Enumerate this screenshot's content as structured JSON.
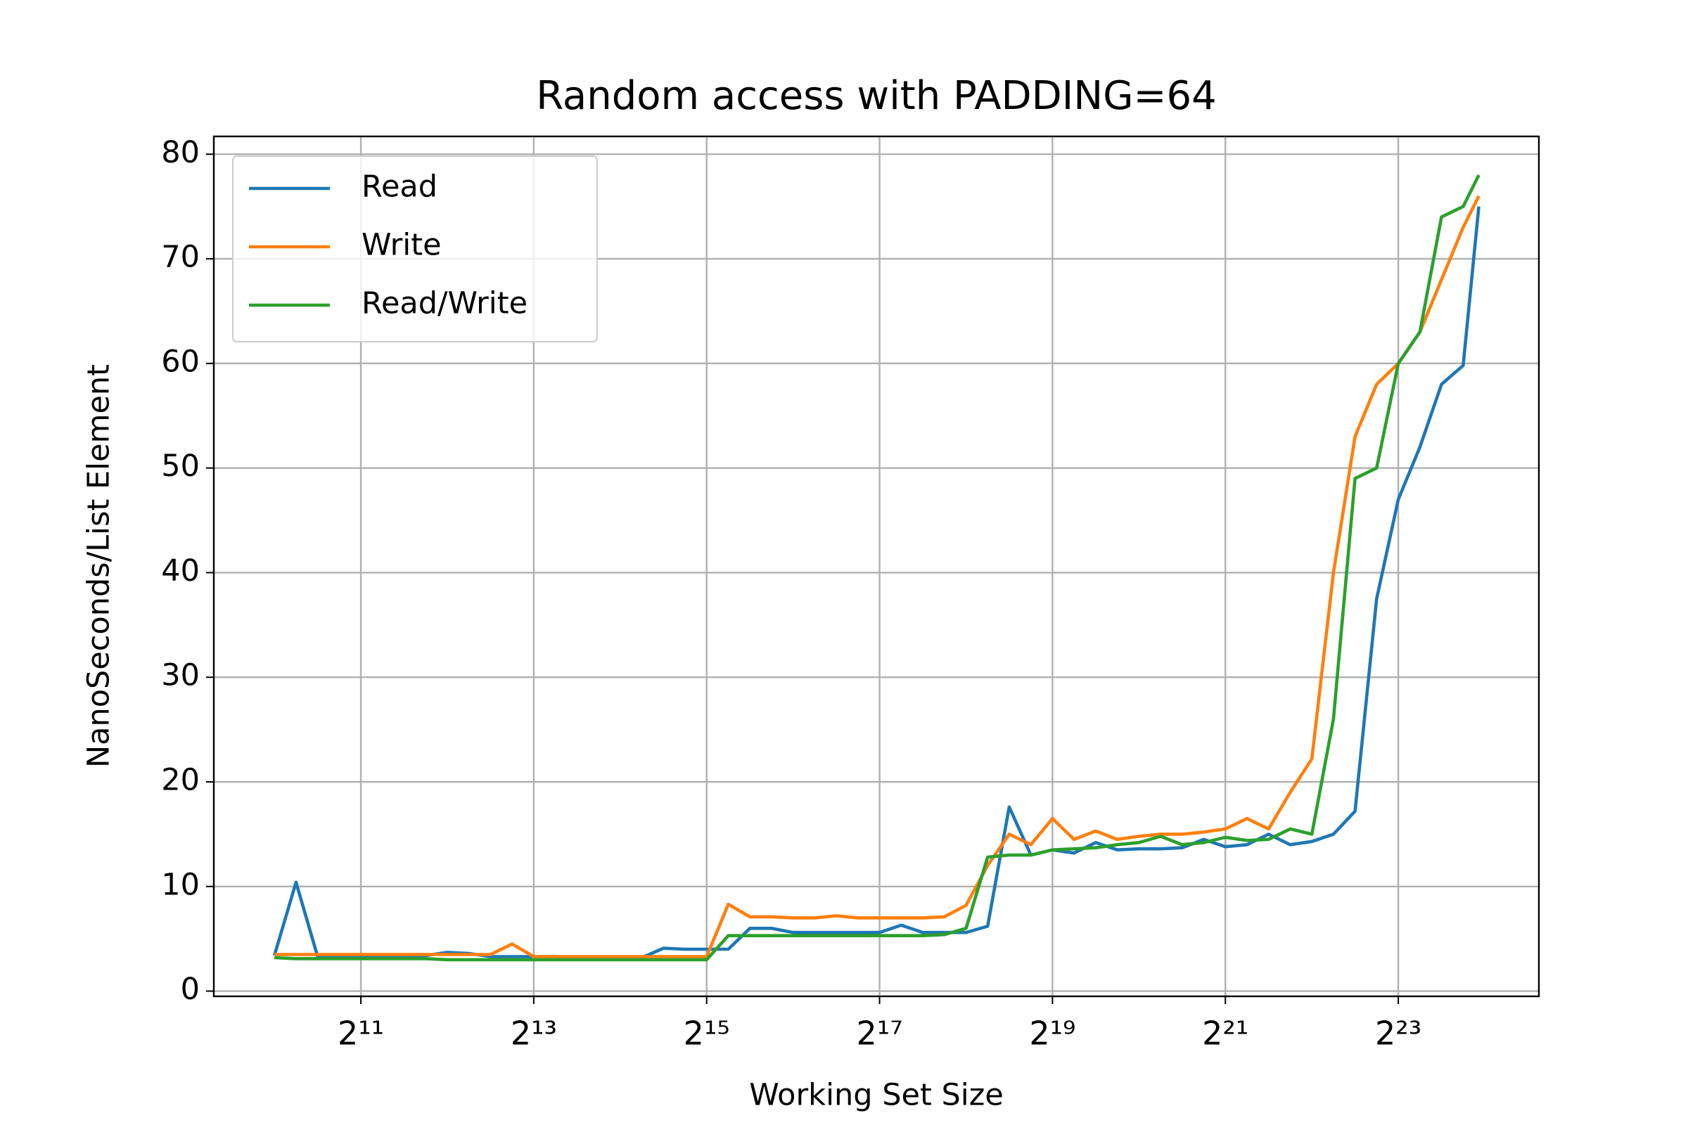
{
  "chart_data": {
    "type": "line",
    "title": "Random access with PADDING=64",
    "x_label": "Working Set Size",
    "y_label": "NanoSeconds/List Element",
    "x_scale": "log2",
    "grid": true,
    "legend": "upper left",
    "x": [
      1024,
      1218,
      1448,
      1722,
      2048,
      2435,
      2896,
      3444,
      4096,
      4871,
      5793,
      6889,
      8192,
      9742,
      11585,
      13777,
      16384,
      19484,
      23170,
      27554,
      32768,
      38968,
      46341,
      55109,
      65536,
      77936,
      92682,
      110218,
      131072,
      155872,
      185364,
      220436,
      262144,
      311744,
      370728,
      440872,
      524288,
      623487,
      741455,
      881744,
      1048576,
      1246974,
      1482910,
      1763488,
      2097152,
      2493948,
      2965821,
      3526975,
      4194304,
      4987896,
      5931642,
      7053950,
      8388608,
      9975792,
      11863283,
      14107901,
      16000000
    ],
    "series": [
      {
        "name": "Read",
        "color": "#1f77b4",
        "values": [
          3.4,
          10.4,
          3.3,
          3.3,
          3.3,
          3.3,
          3.3,
          3.4,
          3.7,
          3.6,
          3.3,
          3.3,
          3.3,
          3.3,
          3.2,
          3.2,
          3.2,
          3.2,
          4.1,
          4.0,
          4.0,
          4.0,
          6.0,
          6.0,
          5.6,
          5.6,
          5.6,
          5.6,
          5.6,
          6.3,
          5.6,
          5.6,
          5.6,
          6.2,
          17.6,
          13.0,
          13.5,
          13.2,
          14.2,
          13.5,
          13.6,
          13.6,
          13.7,
          14.5,
          13.8,
          14.0,
          15.0,
          14.0,
          14.3,
          15.0,
          17.2,
          37.5,
          47.0,
          52.0,
          58.0,
          59.8,
          75.0
        ]
      },
      {
        "name": "Write",
        "color": "#ff7f0e",
        "values": [
          3.5,
          3.5,
          3.5,
          3.5,
          3.5,
          3.5,
          3.5,
          3.5,
          3.5,
          3.5,
          3.5,
          4.5,
          3.3,
          3.3,
          3.3,
          3.3,
          3.3,
          3.3,
          3.3,
          3.3,
          3.3,
          8.3,
          7.1,
          7.1,
          7.0,
          7.0,
          7.2,
          7.0,
          7.0,
          7.0,
          7.0,
          7.1,
          8.2,
          12.0,
          15.0,
          14.0,
          16.5,
          14.5,
          15.3,
          14.5,
          14.8,
          15.0,
          15.0,
          15.2,
          15.5,
          16.5,
          15.5,
          19.0,
          22.2,
          40.0,
          53.0,
          58.0,
          60.0,
          63.0,
          68.0,
          73.0,
          76.0
        ]
      },
      {
        "name": "Read/Write",
        "color": "#2ca02c",
        "values": [
          3.2,
          3.1,
          3.1,
          3.1,
          3.1,
          3.1,
          3.1,
          3.1,
          3.0,
          3.0,
          3.0,
          3.0,
          3.0,
          3.0,
          3.0,
          3.0,
          3.0,
          3.0,
          3.0,
          3.0,
          3.0,
          5.3,
          5.3,
          5.3,
          5.3,
          5.3,
          5.3,
          5.3,
          5.3,
          5.3,
          5.3,
          5.4,
          6.0,
          12.8,
          13.0,
          13.0,
          13.5,
          13.6,
          13.7,
          14.0,
          14.2,
          14.8,
          14.0,
          14.2,
          14.7,
          14.4,
          14.5,
          15.5,
          15.0,
          26.0,
          49.0,
          50.0,
          60.0,
          63.0,
          74.0,
          75.0,
          78.0
        ]
      }
    ],
    "xlim": [
      630,
      25900000
    ],
    "xticks": [
      {
        "value": 2048,
        "label": "2¹¹"
      },
      {
        "value": 8192,
        "label": "2¹³"
      },
      {
        "value": 32768,
        "label": "2¹⁵"
      },
      {
        "value": 131072,
        "label": "2¹⁷"
      },
      {
        "value": 524288,
        "label": "2¹⁹"
      },
      {
        "value": 2097152,
        "label": "2²¹"
      },
      {
        "value": 8388608,
        "label": "2²³"
      }
    ],
    "ylim": [
      -0.5,
      81.7
    ],
    "yticks": [
      0,
      10,
      20,
      30,
      40,
      50,
      60,
      70,
      80
    ]
  }
}
